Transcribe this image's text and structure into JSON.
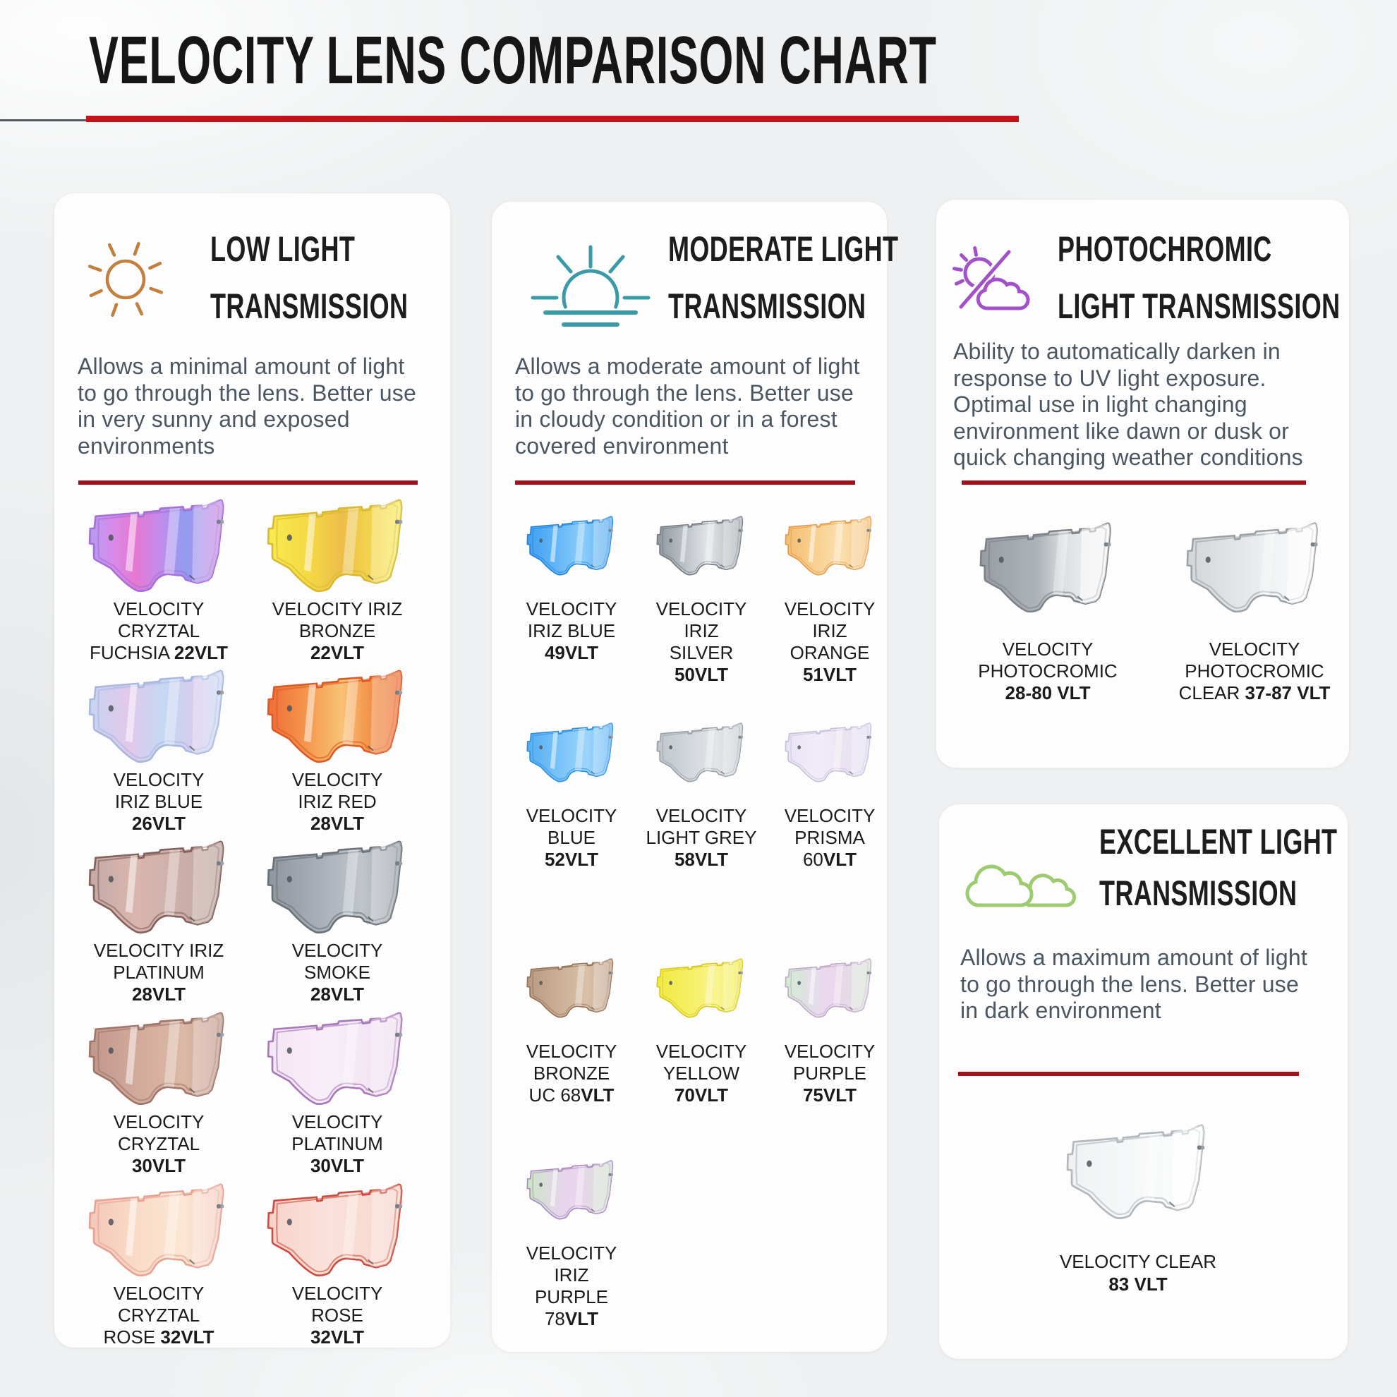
{
  "page": {
    "title": "VELOCITY LENS COMPARISON CHART",
    "accent_red": "#c2121a",
    "divider_red": "#a31118",
    "background": "#edeff0"
  },
  "cards": [
    {
      "icon": "sun-icon",
      "icon_color": "#c1803e",
      "heading": "LOW LIGHT\nTRANSMISSION",
      "paragraph": "Allows a minimal amount of light\nto go through the lens. Better use\nin very sunny and exposed\nenvironments",
      "lenses": [
        {
          "name": "VELOCITY\nCRYZTAL\nFUCHSIA **22VLT**",
          "outline": "#a570d8",
          "mirror": true,
          "stops": [
            [
              0,
              "#b49df0"
            ],
            [
              0.18,
              "#d98ae8"
            ],
            [
              0.34,
              "#e678d2"
            ],
            [
              0.52,
              "#c48bea"
            ],
            [
              0.72,
              "#8f9df2"
            ],
            [
              1,
              "#d08ae0"
            ]
          ]
        },
        {
          "name": "VELOCITY IRIZ\nBRONZE\n**22VLT**",
          "outline": "#d8ba30",
          "mirror": true,
          "stops": [
            [
              0,
              "#f8ec52"
            ],
            [
              0.3,
              "#f4d944"
            ],
            [
              0.55,
              "#edbe4a"
            ],
            [
              0.8,
              "#f3d74e"
            ],
            [
              1,
              "#f9ee60"
            ]
          ]
        },
        {
          "name": "VELOCITY\nIRIZ BLUE\n**26VLT**",
          "outline": "#a8b8de",
          "mirror": true,
          "stops": [
            [
              0,
              "#c8d4f2"
            ],
            [
              0.3,
              "#e2c8ea"
            ],
            [
              0.55,
              "#c4d8f4"
            ],
            [
              0.8,
              "#d8cbee"
            ],
            [
              1,
              "#c8dcf6"
            ]
          ]
        },
        {
          "name": "VELOCITY\nIRIZ RED\n**28VLT**",
          "outline": "#dd5a24",
          "mirror": true,
          "stops": [
            [
              0,
              "#ef6d38"
            ],
            [
              0.3,
              "#f4994e"
            ],
            [
              0.55,
              "#f9c276"
            ],
            [
              0.8,
              "#f28a42"
            ],
            [
              1,
              "#ee7038"
            ]
          ]
        },
        {
          "name": "VELOCITY IRIZ\nPLATINUM\n**28VLT**",
          "outline": "#84615c",
          "mirror": true,
          "stops": [
            [
              0,
              "#c4aaa6"
            ],
            [
              0.35,
              "#d9b6ae"
            ],
            [
              0.65,
              "#cdb0aa"
            ],
            [
              1,
              "#bda49f"
            ]
          ]
        },
        {
          "name": "VELOCITY\nSMOKE\n**28VLT**",
          "outline": "#6a7178",
          "mirror": false,
          "stops": [
            [
              0,
              "#8f969e"
            ],
            [
              0.4,
              "#a9b0b8"
            ],
            [
              0.7,
              "#bfc5cb"
            ],
            [
              1,
              "#9aa1a8"
            ]
          ]
        },
        {
          "name": "VELOCITY\nCRYZTAL\n**30VLT**",
          "outline": "#a0766a",
          "mirror": true,
          "stops": [
            [
              0,
              "#c1988c"
            ],
            [
              0.4,
              "#d4ac9c"
            ],
            [
              0.7,
              "#dcb8a6"
            ],
            [
              1,
              "#c49c8e"
            ]
          ]
        },
        {
          "name": "VELOCITY\nPLATINUM\n**30VLT**",
          "outline": "#a878ba",
          "mirror": false,
          "stops": [
            [
              0,
              "#f4e6f4"
            ],
            [
              0.45,
              "#f8eef8"
            ],
            [
              1,
              "#efdff0"
            ]
          ]
        },
        {
          "name": "VELOCITY\nCRYZTAL\nROSE **32VLT**",
          "outline": "#e7a292",
          "mirror": true,
          "stops": [
            [
              0,
              "#f5c8ba"
            ],
            [
              0.4,
              "#f9ddc9"
            ],
            [
              0.7,
              "#fbe6d4"
            ],
            [
              1,
              "#f5cbbc"
            ]
          ]
        },
        {
          "name": "VELOCITY\nROSE\n**32VLT**",
          "outline": "#cc4e40",
          "mirror": false,
          "stops": [
            [
              0,
              "#f7d2ca"
            ],
            [
              0.45,
              "#fae2da"
            ],
            [
              1,
              "#f6d4cc"
            ]
          ]
        }
      ]
    },
    {
      "icon": "sunrise-icon",
      "icon_color": "#3b9aa8",
      "heading": "MODERATE LIGHT\nTRANSMISSION",
      "paragraph": "Allows a moderate amount of light\nto go through the lens. Better use\nin cloudy condition or in a forest\ncovered environment",
      "lenses": [
        {
          "name": "VELOCITY\nIRIZ BLUE\n**49VLT**",
          "outline": "#2384dc",
          "mirror": true,
          "stops": [
            [
              0,
              "#409ff0"
            ],
            [
              0.35,
              "#64b6f6"
            ],
            [
              0.65,
              "#8ccdfa"
            ],
            [
              1,
              "#55a9f2"
            ]
          ]
        },
        {
          "name": "VELOCITY\nIRIZ\nSILVER\n**50VLT**",
          "outline": "#757c83",
          "mirror": true,
          "stops": [
            [
              0,
              "#8f969d"
            ],
            [
              0.35,
              "#bfc5ca"
            ],
            [
              0.6,
              "#e2e5e8"
            ],
            [
              1,
              "#a6adb4"
            ]
          ]
        },
        {
          "name": "VELOCITY\nIRIZ\nORANGE\n**51VLT**",
          "outline": "#e29d4c",
          "mirror": true,
          "stops": [
            [
              0,
              "#f4bd72"
            ],
            [
              0.35,
              "#f8d190"
            ],
            [
              0.65,
              "#fbdfae"
            ],
            [
              1,
              "#f5c47e"
            ]
          ]
        },
        {
          "name": "VELOCITY\nBLUE\n**52VLT**",
          "outline": "#2e8fe0",
          "mirror": true,
          "stops": [
            [
              0,
              "#55aef2"
            ],
            [
              0.4,
              "#7cc4f8"
            ],
            [
              0.7,
              "#9cd5fb"
            ],
            [
              1,
              "#63b5f4"
            ]
          ]
        },
        {
          "name": "VELOCITY\nLIGHT GREY\n**58VLT**",
          "outline": "#99a0a7",
          "mirror": false,
          "stops": [
            [
              0,
              "#bfc5cb"
            ],
            [
              0.4,
              "#d3d8dc"
            ],
            [
              0.7,
              "#e3e6e9"
            ],
            [
              1,
              "#c7cdd2"
            ]
          ]
        },
        {
          "name": "VELOCITY\nPRISMA\n60**VLT**",
          "outline": "#c7c0da",
          "mirror": false,
          "stops": [
            [
              0,
              "#e7e3f3"
            ],
            [
              0.4,
              "#f1edf8"
            ],
            [
              0.7,
              "#ece2f1"
            ],
            [
              1,
              "#e2e0f1"
            ]
          ]
        },
        {
          "name": "VELOCITY\nBRONZE\nUC 68**VLT**",
          "outline": "#927257",
          "mirror": false,
          "stops": [
            [
              0,
              "#ba9a84"
            ],
            [
              0.4,
              "#ccb098"
            ],
            [
              0.7,
              "#d9c0a8"
            ],
            [
              1,
              "#c2a088"
            ]
          ]
        },
        {
          "name": "VELOCITY\nYELLOW\n**70VLT**",
          "outline": "#d7c922",
          "mirror": false,
          "stops": [
            [
              0,
              "#f1e943"
            ],
            [
              0.4,
              "#f5ef66"
            ],
            [
              0.7,
              "#f9f492"
            ],
            [
              1,
              "#f2eb4e"
            ]
          ]
        },
        {
          "name": "VELOCITY\nPURPLE\n**75VLT**",
          "outline": "#c0aacc",
          "mirror": true,
          "stops": [
            [
              0,
              "#d2ecd0"
            ],
            [
              0.35,
              "#e6dcec"
            ],
            [
              0.6,
              "#ecd6ec"
            ],
            [
              1,
              "#d8e6d4"
            ]
          ]
        },
        {
          "name": "VELOCITY\nIRIZ\nPURPLE\n78**VLT**",
          "outline": "#a98bc2",
          "mirror": true,
          "stops": [
            [
              0,
              "#cae8c2"
            ],
            [
              0.35,
              "#e4d6ea"
            ],
            [
              0.6,
              "#ebd4ee"
            ],
            [
              1,
              "#cfe4ca"
            ]
          ]
        }
      ]
    },
    {
      "icon": "sun-cloud-icon",
      "icon_color": "#a152c8",
      "heading": "PHOTOCHROMIC\nLIGHT TRANSMISSION",
      "paragraph": "Ability to automatically darken in\nresponse to UV light exposure.\nOptimal use in light changing\nenvironment like dawn or dusk or\nquick changing weather conditions",
      "lenses": [
        {
          "name": "VELOCITY\nPHOTOCROMIC\n**28-80 VLT**",
          "outline": "#7c8287",
          "mirror": false,
          "pane": 0.55,
          "stops": [
            [
              0,
              "#979da3"
            ],
            [
              0.45,
              "#aeb4b9"
            ],
            [
              0.66,
              "#dfe2e4"
            ],
            [
              1,
              "#f2f3f4"
            ]
          ]
        },
        {
          "name": "VELOCITY\nPHOTOCROMIC\nCLEAR **37-87 VLT**",
          "outline": "#9ba1a5",
          "mirror": false,
          "pane": 0.6,
          "stops": [
            [
              0,
              "#d2d6d9"
            ],
            [
              0.4,
              "#e3e6e8"
            ],
            [
              0.7,
              "#f2f4f5"
            ],
            [
              1,
              "#f7f8f9"
            ]
          ]
        }
      ]
    },
    {
      "icon": "clouds-icon",
      "icon_color": "#9ccb70",
      "heading": "EXCELLENT LIGHT\nTRANSMISSION",
      "paragraph": "Allows a maximum amount of light\nto go through the lens. Better use\nin dark environment",
      "lenses": [
        {
          "name": "VELOCITY CLEAR\n**83 VLT**",
          "outline": "#b3b8bd",
          "mirror": false,
          "pane": 0.5,
          "stops": [
            [
              0,
              "#eff1f2"
            ],
            [
              0.5,
              "#f7f8f9"
            ],
            [
              1,
              "#fbfcfc"
            ]
          ]
        }
      ]
    }
  ]
}
